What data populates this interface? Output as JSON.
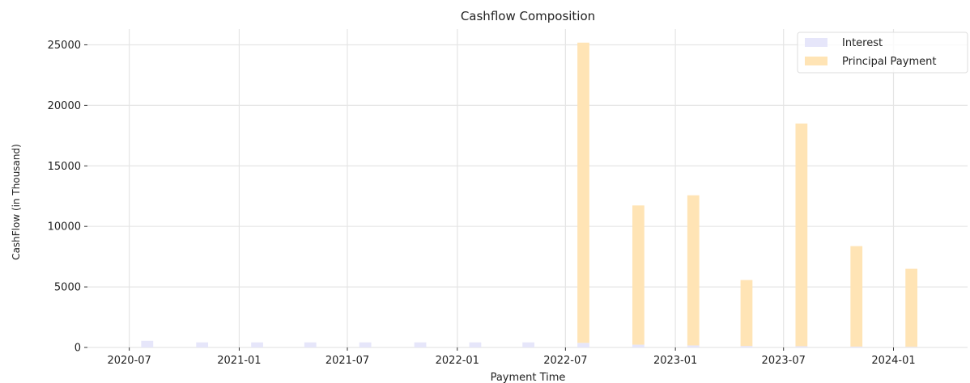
{
  "chart_data": {
    "type": "bar",
    "title": "Cashflow Composition",
    "xlabel": "Payment Time",
    "ylabel": "CashFlow (in Thousand)",
    "ylim": [
      0,
      26300
    ],
    "yticks": [
      0,
      5000,
      10000,
      15000,
      20000,
      25000
    ],
    "xlim": [
      "2020-04-22",
      "2024-05-04"
    ],
    "xticks": [
      "2020-07",
      "2021-01",
      "2021-07",
      "2022-01",
      "2022-07",
      "2023-01",
      "2023-07",
      "2024-01"
    ],
    "grid": true,
    "stacked": true,
    "legend_position": "top-right",
    "categories": [
      "2020-07-31",
      "2020-10-31",
      "2021-01-31",
      "2021-04-30",
      "2021-07-31",
      "2021-10-31",
      "2022-01-31",
      "2022-04-30",
      "2022-07-31",
      "2022-10-31",
      "2023-01-31",
      "2023-04-30",
      "2023-07-31",
      "2023-10-31",
      "2024-01-31"
    ],
    "series": [
      {
        "name": "Interest",
        "color": "#e6e6fa",
        "values": [
          550,
          420,
          420,
          420,
          420,
          420,
          420,
          420,
          380,
          230,
          170,
          120,
          100,
          70,
          50
        ]
      },
      {
        "name": "Principal Payment",
        "color": "#ffe4b5",
        "values": [
          0,
          0,
          0,
          0,
          0,
          0,
          0,
          0,
          24800,
          11500,
          12400,
          5450,
          18400,
          8300,
          6450
        ]
      }
    ]
  }
}
